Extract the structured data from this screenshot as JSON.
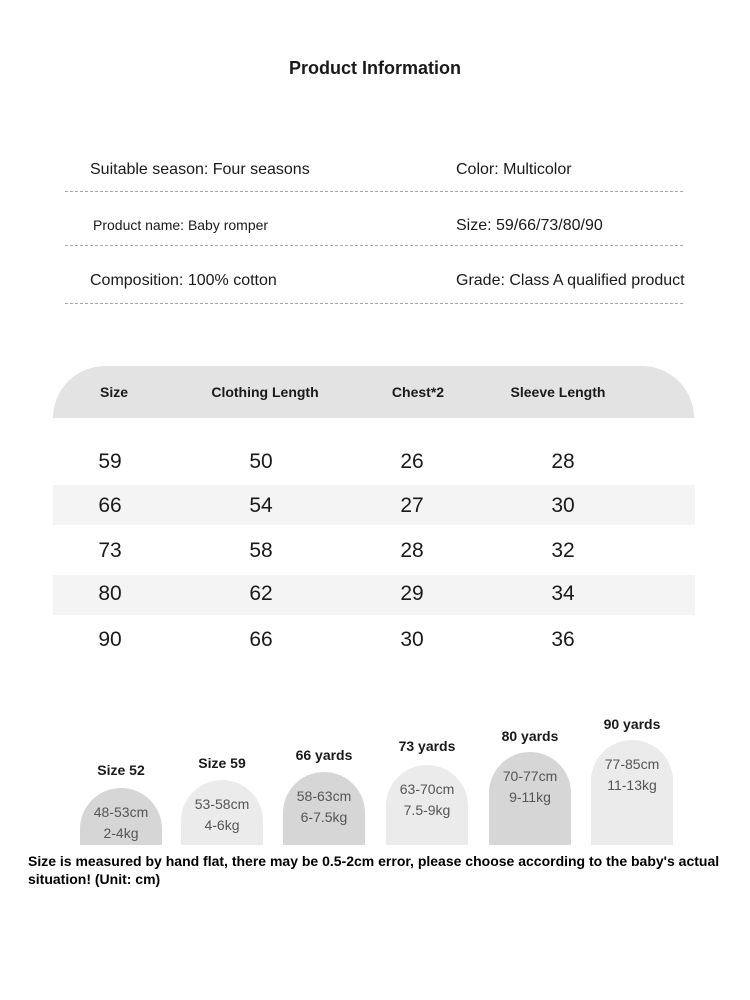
{
  "title": "Product Information",
  "info": [
    [
      "Suitable season: Four seasons",
      "Color: Multicolor"
    ],
    [
      "Product name: Baby romper",
      "Size: 59/66/73/80/90"
    ],
    [
      "Composition: 100% cotton",
      "Grade: Class A qualified product"
    ]
  ],
  "table": {
    "header": [
      "Size",
      "Clothing Length",
      "Chest*2",
      "Sleeve Length"
    ],
    "rows": [
      [
        59,
        50,
        26,
        28
      ],
      [
        66,
        54,
        27,
        30
      ],
      [
        73,
        58,
        28,
        32
      ],
      [
        80,
        62,
        29,
        34
      ],
      [
        90,
        66,
        30,
        36
      ]
    ]
  },
  "sizes": [
    {
      "label": "Size 52",
      "range": "48-53cm",
      "weight": "2-4kg"
    },
    {
      "label": "Size 59",
      "range": "53-58cm",
      "weight": "4-6kg"
    },
    {
      "label": "66 yards",
      "range": "58-63cm",
      "weight": "6-7.5kg"
    },
    {
      "label": "73 yards",
      "range": "63-70cm",
      "weight": "7.5-9kg"
    },
    {
      "label": "80 yards",
      "range": "70-77cm",
      "weight": "9-11kg"
    },
    {
      "label": "90 yards",
      "range": "77-85cm",
      "weight": "11-13kg"
    }
  ],
  "note": "Size is measured by hand flat, there may be 0.5-2cm error, please choose according to the baby's actual situation! (Unit: cm)"
}
